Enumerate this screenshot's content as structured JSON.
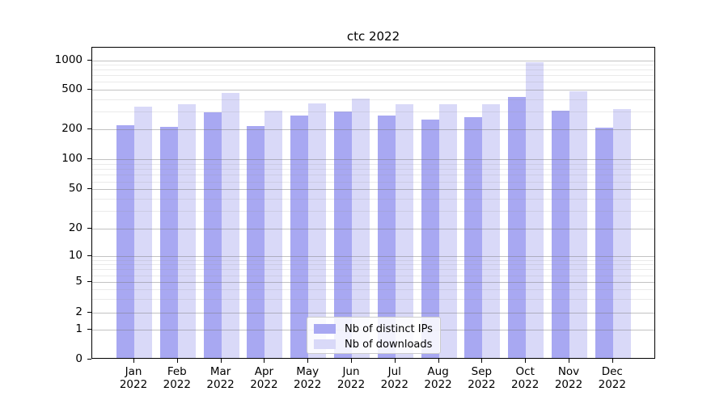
{
  "chart_data": {
    "type": "bar",
    "title": "ctc 2022",
    "categories": [
      "Jan 2022",
      "Feb 2022",
      "Mar 2022",
      "Apr 2022",
      "May 2022",
      "Jun 2022",
      "Jul 2022",
      "Aug 2022",
      "Sep 2022",
      "Oct 2022",
      "Nov 2022",
      "Dec 2022"
    ],
    "series": [
      {
        "name": "Nb of distinct IPs",
        "slug": "distinct-ips",
        "values": [
          210,
          202,
          285,
          205,
          265,
          290,
          265,
          240,
          255,
          405,
          295,
          198
        ]
      },
      {
        "name": "Nb of downloads",
        "slug": "downloads",
        "values": [
          325,
          345,
          450,
          295,
          350,
          390,
          345,
          340,
          345,
          920,
          460,
          305
        ]
      }
    ],
    "yscale": "symlog",
    "ytick_values": [
      0,
      1,
      2,
      5,
      10,
      20,
      50,
      100,
      200,
      500,
      1000
    ],
    "ylim": [
      0,
      1300
    ],
    "grid": "horizontal major and minor gridlines",
    "legend_position": "lower center inside plot",
    "xlabel": "",
    "ylabel": ""
  },
  "legend": {
    "items": [
      {
        "label": "Nb of distinct IPs"
      },
      {
        "label": "Nb of downloads"
      }
    ]
  },
  "colors": {
    "bar_distinct_ips": "#a8a8f2",
    "bar_downloads": "#d9d9f8",
    "axis": "#000000",
    "grid_major": "#c2c2c2",
    "grid_minor": "#e9e9e9",
    "legend_border": "#cccccc",
    "background": "#ffffff"
  }
}
